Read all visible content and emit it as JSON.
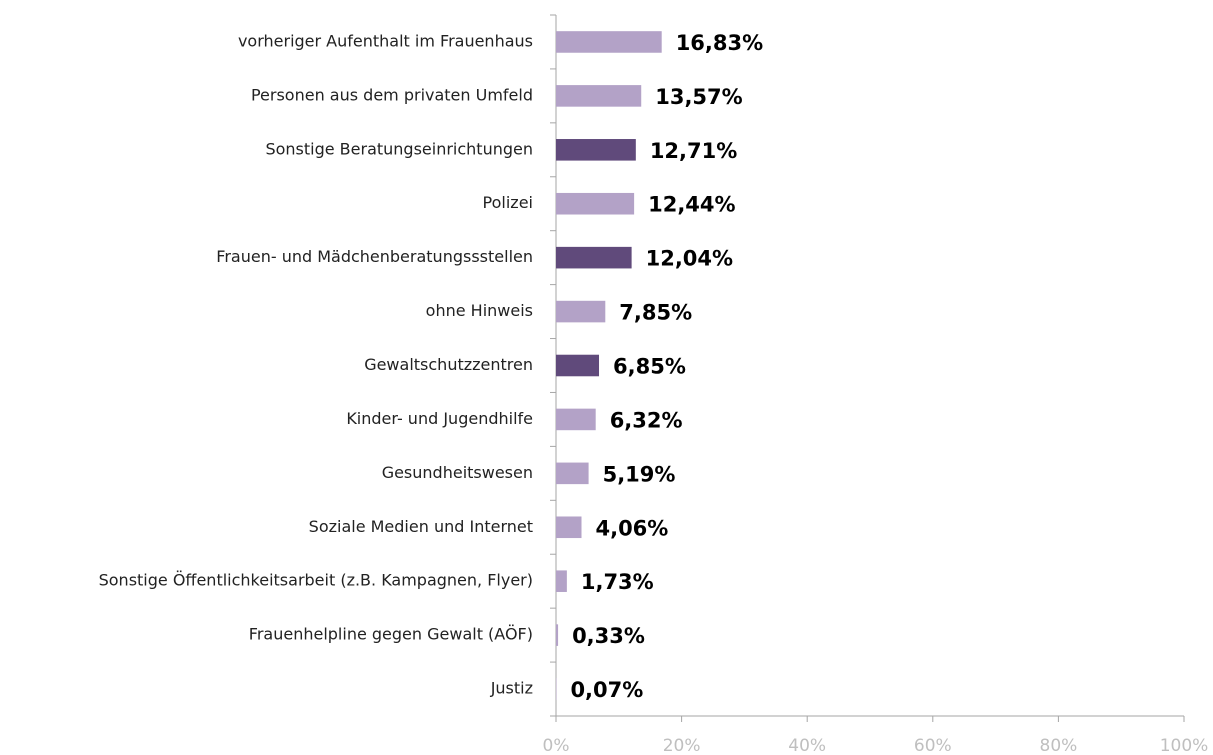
{
  "chart_data": {
    "type": "barh",
    "categories": [
      "vorheriger Aufenthalt im Frauenhaus",
      "Personen aus dem privaten Umfeld",
      "Sonstige Beratungseinrichtungen",
      "Polizei",
      "Frauen- und Mädchenberatungssstellen",
      "ohne Hinweis",
      "Gewaltschutzzentren",
      "Kinder- und Jugendhilfe",
      "Gesundheitswesen",
      "Soziale Medien und Internet",
      "Sonstige Öffentlichkeitsarbeit (z.B. Kampagnen, Flyer)",
      "Frauenhelpline gegen Gewalt (AÖF)",
      "Justiz"
    ],
    "values": [
      16.83,
      13.57,
      12.71,
      12.44,
      12.04,
      7.85,
      6.85,
      6.32,
      5.19,
      4.06,
      1.73,
      0.33,
      0.07
    ],
    "value_labels": [
      "16,83%",
      "13,57%",
      "12,71%",
      "12,44%",
      "12,04%",
      "7,85%",
      "6,85%",
      "6,32%",
      "5,19%",
      "4,06%",
      "1,73%",
      "0,33%",
      "0,07%"
    ],
    "colors": [
      "#b3a2c7",
      "#b3a2c7",
      "#604a7b",
      "#b3a2c7",
      "#604a7b",
      "#b3a2c7",
      "#604a7b",
      "#b3a2c7",
      "#b3a2c7",
      "#b3a2c7",
      "#b3a2c7",
      "#b3a2c7",
      "#b3a2c7"
    ],
    "xlim": [
      0,
      100
    ],
    "xticks": [
      {
        "value": 0,
        "label": "0%"
      },
      {
        "value": 20,
        "label": "20%"
      },
      {
        "value": 40,
        "label": "40%"
      },
      {
        "value": 60,
        "label": "60%"
      },
      {
        "value": 80,
        "label": "80%"
      },
      {
        "value": 100,
        "label": "100%"
      }
    ],
    "grid": false
  }
}
